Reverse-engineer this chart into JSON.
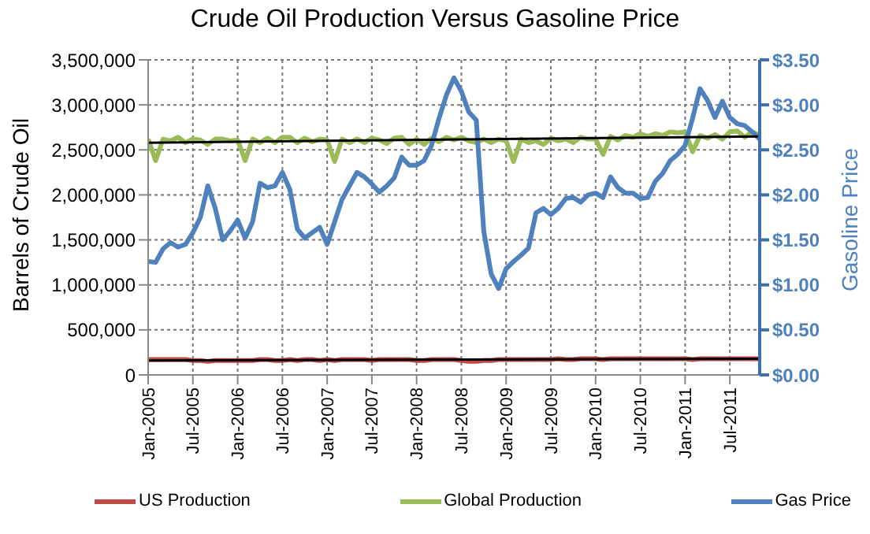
{
  "chart_data": {
    "type": "line",
    "title": "Crude Oil Production Versus Gasoline Price",
    "ylabel": "Barrels of Crude Oil",
    "y2label": "Gasoline Price",
    "x": [
      "2005-01",
      "2005-02",
      "2005-03",
      "2005-04",
      "2005-05",
      "2005-06",
      "2005-07",
      "2005-08",
      "2005-09",
      "2005-10",
      "2005-11",
      "2005-12",
      "2006-01",
      "2006-02",
      "2006-03",
      "2006-04",
      "2006-05",
      "2006-06",
      "2006-07",
      "2006-08",
      "2006-09",
      "2006-10",
      "2006-11",
      "2006-12",
      "2007-01",
      "2007-02",
      "2007-03",
      "2007-04",
      "2007-05",
      "2007-06",
      "2007-07",
      "2007-08",
      "2007-09",
      "2007-10",
      "2007-11",
      "2007-12",
      "2008-01",
      "2008-02",
      "2008-03",
      "2008-04",
      "2008-05",
      "2008-06",
      "2008-07",
      "2008-08",
      "2008-09",
      "2008-10",
      "2008-11",
      "2008-12",
      "2009-01",
      "2009-02",
      "2009-03",
      "2009-04",
      "2009-05",
      "2009-06",
      "2009-07",
      "2009-08",
      "2009-09",
      "2009-10",
      "2009-11",
      "2009-12",
      "2010-01",
      "2010-02",
      "2010-03",
      "2010-04",
      "2010-05",
      "2010-06",
      "2010-07",
      "2010-08",
      "2010-09",
      "2010-10",
      "2010-11",
      "2010-12",
      "2011-01",
      "2011-02",
      "2011-03",
      "2011-04",
      "2011-05",
      "2011-06",
      "2011-07",
      "2011-08",
      "2011-09",
      "2011-10",
      "2011-11"
    ],
    "xlim": [
      "2005-01",
      "2011-11"
    ],
    "xticks": [
      {
        "value": "2005-01",
        "label": "Jan-2005"
      },
      {
        "value": "2005-07",
        "label": "Jul-2005"
      },
      {
        "value": "2006-01",
        "label": "Jan-2006"
      },
      {
        "value": "2006-07",
        "label": "Jul-2006"
      },
      {
        "value": "2007-01",
        "label": "Jan-2007"
      },
      {
        "value": "2007-07",
        "label": "Jul-2007"
      },
      {
        "value": "2008-01",
        "label": "Jan-2008"
      },
      {
        "value": "2008-07",
        "label": "Jul-2008"
      },
      {
        "value": "2009-01",
        "label": "Jan-2009"
      },
      {
        "value": "2009-07",
        "label": "Jul-2009"
      },
      {
        "value": "2010-01",
        "label": "Jan-2010"
      },
      {
        "value": "2010-07",
        "label": "Jul-2010"
      },
      {
        "value": "2011-01",
        "label": "Jan-2011"
      },
      {
        "value": "2011-07",
        "label": "Jul-2011"
      }
    ],
    "ylim": [
      0,
      3500000
    ],
    "yticks": [
      0,
      {
        "value": 500000,
        "label": "500,000"
      },
      {
        "value": 1000000,
        "label": "1,000,000"
      },
      {
        "value": 1500000,
        "label": "1,500,000"
      },
      {
        "value": 2000000,
        "label": "2,000,000"
      },
      {
        "value": 2500000,
        "label": "2,500,000"
      },
      {
        "value": 3000000,
        "label": "3,000,000"
      },
      {
        "value": 3500000,
        "label": "3,500,000"
      }
    ],
    "y2lim": [
      0,
      3.5
    ],
    "y2ticks": [
      {
        "value": 0,
        "label": "$0.00"
      },
      {
        "value": 0.5,
        "label": "$0.50"
      },
      {
        "value": 1,
        "label": "$1.00"
      },
      {
        "value": 1.5,
        "label": "$1.50"
      },
      {
        "value": 2,
        "label": "$2.00"
      },
      {
        "value": 2.5,
        "label": "$2.50"
      },
      {
        "value": 3,
        "label": "$3.00"
      },
      {
        "value": 3.5,
        "label": "$3.50"
      }
    ],
    "grid": true,
    "legend": "bottom",
    "marker": "none",
    "line_style": "solid",
    "series": [
      {
        "name": "US Production",
        "color": "#be4b48",
        "values": [
          170000,
          170000,
          170000,
          170000,
          170000,
          170000,
          160000,
          160000,
          150000,
          160000,
          160000,
          160000,
          160000,
          160000,
          160000,
          170000,
          170000,
          160000,
          160000,
          170000,
          160000,
          170000,
          170000,
          160000,
          170000,
          160000,
          170000,
          170000,
          170000,
          170000,
          160000,
          170000,
          170000,
          170000,
          170000,
          170000,
          160000,
          160000,
          170000,
          170000,
          170000,
          170000,
          160000,
          150000,
          150000,
          160000,
          160000,
          170000,
          170000,
          170000,
          170000,
          170000,
          170000,
          170000,
          170000,
          180000,
          170000,
          170000,
          180000,
          180000,
          180000,
          170000,
          180000,
          180000,
          180000,
          180000,
          180000,
          180000,
          180000,
          180000,
          180000,
          180000,
          180000,
          170000,
          180000,
          180000,
          180000,
          180000,
          180000,
          180000,
          180000,
          180000,
          180000
        ]
      },
      {
        "name": "Global Production",
        "color": "#9bbb59",
        "values": [
          2620000,
          2380000,
          2620000,
          2600000,
          2640000,
          2580000,
          2620000,
          2610000,
          2560000,
          2620000,
          2620000,
          2600000,
          2610000,
          2380000,
          2620000,
          2580000,
          2630000,
          2580000,
          2640000,
          2640000,
          2580000,
          2630000,
          2590000,
          2620000,
          2610000,
          2370000,
          2620000,
          2580000,
          2620000,
          2580000,
          2630000,
          2610000,
          2570000,
          2630000,
          2640000,
          2560000,
          2620000,
          2560000,
          2630000,
          2590000,
          2640000,
          2610000,
          2640000,
          2600000,
          2580000,
          2620000,
          2580000,
          2620000,
          2600000,
          2370000,
          2620000,
          2580000,
          2600000,
          2560000,
          2630000,
          2600000,
          2620000,
          2580000,
          2640000,
          2620000,
          2620000,
          2450000,
          2650000,
          2610000,
          2660000,
          2640000,
          2680000,
          2650000,
          2680000,
          2660000,
          2700000,
          2690000,
          2700000,
          2480000,
          2660000,
          2630000,
          2670000,
          2620000,
          2700000,
          2710000,
          2640000,
          2700000,
          2660000
        ]
      },
      {
        "name": "Gas Price",
        "color": "#4f81bd",
        "axis": "y2",
        "values": [
          1.26,
          1.25,
          1.4,
          1.47,
          1.42,
          1.45,
          1.58,
          1.75,
          2.1,
          1.85,
          1.5,
          1.6,
          1.72,
          1.52,
          1.7,
          2.13,
          2.08,
          2.1,
          2.25,
          2.06,
          1.62,
          1.52,
          1.58,
          1.64,
          1.45,
          1.7,
          1.95,
          2.1,
          2.25,
          2.2,
          2.12,
          2.03,
          2.1,
          2.19,
          2.42,
          2.33,
          2.33,
          2.38,
          2.55,
          2.85,
          3.11,
          3.3,
          3.15,
          2.92,
          2.83,
          1.6,
          1.12,
          0.96,
          1.18,
          1.26,
          1.33,
          1.41,
          1.8,
          1.85,
          1.78,
          1.85,
          1.96,
          1.97,
          1.92,
          2.0,
          2.02,
          1.97,
          2.2,
          2.08,
          2.02,
          2.02,
          1.96,
          1.97,
          2.15,
          2.24,
          2.38,
          2.45,
          2.55,
          2.85,
          3.18,
          3.05,
          2.86,
          3.04,
          2.86,
          2.79,
          2.77,
          2.7,
          2.62
        ]
      },
      {
        "type": "line",
        "color": "#000000",
        "x": [
          "2005-01",
          "2011-11"
        ],
        "values": [
          160000,
          180000
        ]
      },
      {
        "type": "line",
        "color": "#000000",
        "x": [
          "2005-01",
          "2011-11"
        ],
        "values": [
          2580000,
          2650000
        ]
      }
    ]
  }
}
